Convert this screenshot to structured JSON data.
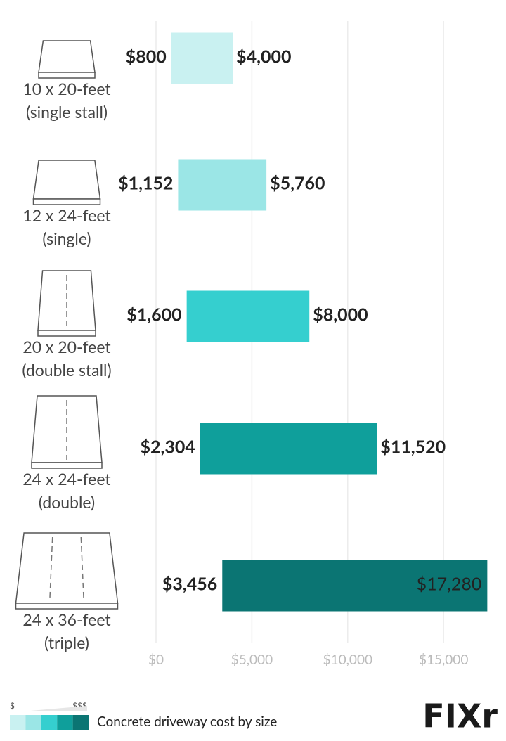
{
  "chart_data": {
    "type": "range_bar",
    "categories": [
      [
        "10 x 20-feet",
        "(single stall)"
      ],
      [
        "12 x 24-feet",
        "(single)"
      ],
      [
        "20 x 20-feet",
        "(double stall)"
      ],
      [
        "24 x 24-feet",
        "(double)"
      ],
      [
        "24 x 36-feet",
        "(triple)"
      ]
    ],
    "low": [
      800,
      1152,
      1600,
      2304,
      3456
    ],
    "low_labels": [
      "$800",
      "$1,152",
      "$1,600",
      "$2,304",
      "$3,456"
    ],
    "high": [
      4000,
      5760,
      8000,
      11520,
      17280
    ],
    "high_labels": [
      "$4,000",
      "$5,760",
      "$8,000",
      "$11,520",
      "$17,280"
    ],
    "colors": [
      "#c9f1f1",
      "#9be6e6",
      "#35cfcf",
      "#0f9f9b",
      "#0b7573"
    ],
    "xlim": [
      0,
      18000
    ],
    "xticks": [
      {
        "value": 0,
        "label": "$0"
      },
      {
        "value": 5000,
        "label": "$5,000"
      },
      {
        "value": 10000,
        "label": "$10,000"
      },
      {
        "value": 15000,
        "label": "$15,000"
      }
    ],
    "grid": true,
    "legend": {
      "low": "$",
      "high": "$$$",
      "text": "Concrete driveway cost by size"
    },
    "brand": "FIXr"
  }
}
